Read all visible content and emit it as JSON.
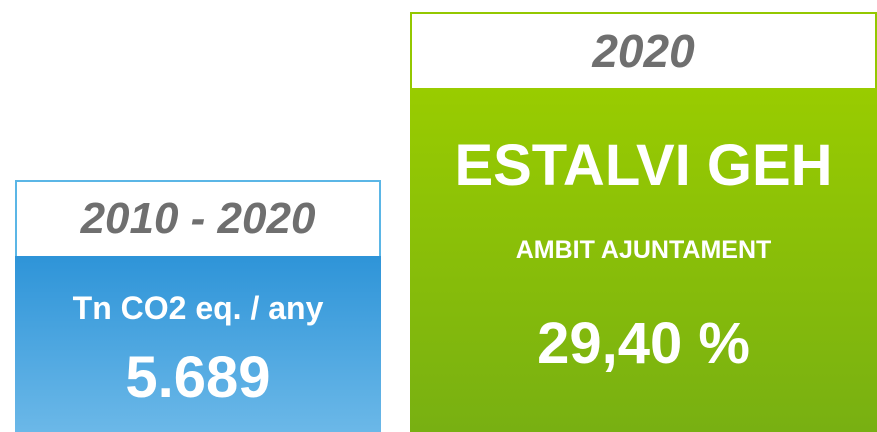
{
  "cards": [
    {
      "period": "2010 - 2020",
      "label": "Tn CO2 eq. / any",
      "value": "5.689"
    },
    {
      "period": "2020",
      "title": "ESTALVI GEH",
      "label": "AMBIT AJUNTAMENT",
      "value": "29,40 %"
    }
  ]
}
